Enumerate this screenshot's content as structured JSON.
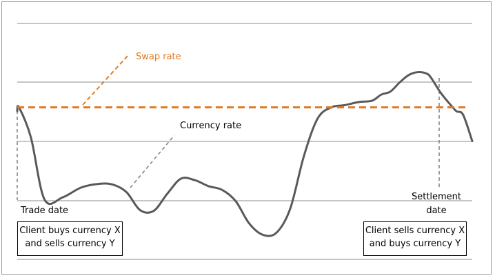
{
  "chart_data": {
    "type": "line",
    "grid": "horizontal",
    "legend": "none",
    "series": [
      {
        "name": "Currency rate",
        "color": "#595959",
        "x": [
          0,
          0.4,
          3,
          6,
          10,
          14,
          18,
          21,
          24,
          27,
          30,
          33,
          36,
          39,
          42,
          45,
          48,
          51,
          54,
          57,
          60,
          63,
          66,
          69,
          72,
          75,
          78,
          80,
          82,
          84,
          86,
          88,
          90,
          91,
          93,
          95,
          96.5,
          98,
          100
        ],
        "values": [
          160,
          165,
          125,
          42,
          45,
          58,
          63,
          62,
          52,
          28,
          27,
          50,
          70,
          68,
          60,
          55,
          40,
          10,
          -5,
          -2,
          30,
          100,
          150,
          165,
          168,
          172,
          174,
          182,
          186,
          198,
          208,
          212,
          210,
          204,
          185,
          170,
          160,
          155,
          120
        ]
      },
      {
        "name": "Swap rate",
        "color": "#e07b22",
        "x": [
          0,
          100
        ],
        "values": [
          165,
          165
        ]
      }
    ],
    "annotations": [
      {
        "text": "Swap rate",
        "color": "#e07b22"
      },
      {
        "text": "Currency rate",
        "color": "#000000"
      },
      {
        "text": "Trade date",
        "color": "#000000"
      },
      {
        "text": "Settlement",
        "color": "#000000"
      },
      {
        "text": "date",
        "color": "#000000"
      }
    ],
    "boxes": {
      "left": [
        "Client buys currency X",
        "and sells currency Y"
      ],
      "right": [
        "Client sells currency X",
        "and buys currency Y"
      ]
    },
    "title": "",
    "xlabel": "",
    "ylabel": ""
  }
}
